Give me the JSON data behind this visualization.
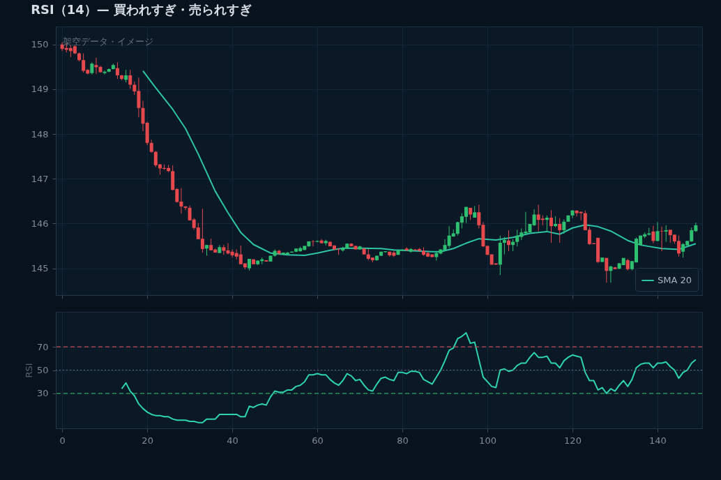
{
  "chart_data": [
    {
      "type": "candlestick",
      "title": "RSI（14）— 買われすぎ・売られすぎ",
      "annotations": [
        "架空データ・イメージ"
      ],
      "x": [
        0,
        1,
        2,
        3,
        4,
        5,
        6,
        7,
        8,
        9,
        10,
        11,
        12,
        13,
        14,
        15,
        16,
        17,
        18,
        19,
        20,
        21,
        22,
        23,
        24,
        25,
        26,
        27,
        28,
        29,
        30,
        31,
        32,
        33,
        34,
        35,
        36,
        37,
        38,
        39,
        40,
        41,
        42,
        43,
        44,
        45,
        46,
        47,
        48,
        49,
        50,
        51,
        52,
        53,
        54,
        55,
        56,
        57,
        58,
        59,
        60,
        61,
        62,
        63,
        64,
        65,
        66,
        67,
        68,
        69,
        70,
        71,
        72,
        73,
        74,
        75,
        76,
        77,
        78,
        79,
        80,
        81,
        82,
        83,
        84,
        85,
        86,
        87,
        88,
        89,
        90,
        91,
        92,
        93,
        94,
        95,
        96,
        97,
        98,
        99,
        100,
        101,
        102,
        103,
        104,
        105,
        106,
        107,
        108,
        109,
        110,
        111,
        112,
        113,
        114,
        115,
        116,
        117,
        118,
        119,
        120,
        121,
        122,
        123,
        124,
        125,
        126,
        127,
        128,
        129,
        130,
        131,
        132,
        133,
        134,
        135,
        136,
        137,
        138,
        139,
        140,
        141,
        142,
        143,
        144,
        145,
        146,
        147,
        148,
        149
      ],
      "ohlc": [
        [
          150.0,
          150.05,
          149.85,
          149.9
        ],
        [
          149.92,
          150.02,
          149.82,
          149.88
        ],
        [
          149.92,
          149.98,
          149.72,
          149.85
        ],
        [
          149.96,
          149.98,
          149.78,
          149.8
        ],
        [
          149.8,
          149.82,
          149.62,
          149.65
        ],
        [
          149.65,
          149.8,
          149.37,
          149.41
        ],
        [
          149.43,
          149.45,
          149.33,
          149.35
        ],
        [
          149.36,
          149.6,
          149.33,
          149.57
        ],
        [
          149.54,
          149.7,
          149.34,
          149.49
        ],
        [
          149.5,
          149.52,
          149.37,
          149.38
        ],
        [
          149.36,
          149.42,
          149.33,
          149.39
        ],
        [
          149.39,
          149.46,
          149.38,
          149.45
        ],
        [
          149.45,
          149.57,
          149.44,
          149.54
        ],
        [
          149.47,
          149.6,
          149.23,
          149.31
        ],
        [
          149.31,
          149.32,
          149.2,
          149.23
        ],
        [
          149.21,
          149.43,
          149.15,
          149.31
        ],
        [
          149.31,
          149.43,
          149.01,
          149.1
        ],
        [
          149.1,
          149.17,
          148.87,
          148.95
        ],
        [
          148.96,
          149.26,
          148.37,
          148.58
        ],
        [
          148.58,
          148.74,
          148.06,
          148.23
        ],
        [
          148.25,
          148.27,
          147.75,
          147.8
        ],
        [
          147.8,
          147.87,
          147.58,
          147.6
        ],
        [
          147.6,
          147.62,
          147.26,
          147.3
        ],
        [
          147.32,
          147.33,
          147.09,
          147.23
        ],
        [
          147.24,
          147.32,
          147.2,
          147.22
        ],
        [
          147.24,
          147.31,
          147.15,
          147.17
        ],
        [
          147.17,
          147.3,
          146.74,
          146.75
        ],
        [
          146.77,
          146.79,
          146.47,
          146.48
        ],
        [
          146.49,
          146.79,
          146.22,
          146.38
        ],
        [
          146.38,
          146.39,
          146.3,
          146.35
        ],
        [
          146.35,
          146.4,
          146.07,
          146.07
        ],
        [
          146.09,
          146.12,
          145.86,
          145.9
        ],
        [
          145.91,
          146.01,
          145.65,
          145.65
        ],
        [
          145.66,
          146.33,
          145.35,
          145.43
        ],
        [
          145.44,
          145.52,
          145.28,
          145.52
        ],
        [
          145.52,
          145.66,
          145.4,
          145.4
        ],
        [
          145.42,
          145.44,
          145.35,
          145.35
        ],
        [
          145.34,
          145.52,
          145.34,
          145.47
        ],
        [
          145.47,
          145.52,
          145.3,
          145.39
        ],
        [
          145.4,
          145.56,
          145.31,
          145.33
        ],
        [
          145.37,
          145.42,
          145.24,
          145.29
        ],
        [
          145.34,
          145.42,
          145.2,
          145.26
        ],
        [
          145.31,
          145.51,
          145.09,
          145.09
        ],
        [
          145.11,
          145.11,
          144.98,
          145.02
        ],
        [
          145.0,
          145.21,
          144.95,
          145.21
        ],
        [
          145.2,
          145.2,
          145.09,
          145.09
        ],
        [
          145.09,
          145.18,
          145.07,
          145.17
        ],
        [
          145.16,
          145.24,
          145.09,
          145.2
        ],
        [
          145.18,
          145.18,
          145.15,
          145.15
        ],
        [
          145.15,
          145.28,
          145.15,
          145.28
        ],
        [
          145.28,
          145.42,
          145.26,
          145.39
        ],
        [
          145.39,
          145.41,
          145.3,
          145.33
        ],
        [
          145.31,
          145.35,
          145.3,
          145.35
        ],
        [
          145.31,
          145.36,
          145.31,
          145.35
        ],
        [
          145.35,
          145.38,
          145.35,
          145.37
        ],
        [
          145.37,
          145.44,
          145.36,
          145.44
        ],
        [
          145.38,
          145.48,
          145.37,
          145.45
        ],
        [
          145.41,
          145.5,
          145.4,
          145.5
        ],
        [
          145.49,
          145.6,
          145.48,
          145.6
        ],
        [
          145.6,
          145.63,
          145.49,
          145.59
        ],
        [
          145.59,
          145.62,
          145.58,
          145.61
        ],
        [
          145.62,
          145.65,
          145.55,
          145.56
        ],
        [
          145.56,
          145.64,
          145.51,
          145.61
        ],
        [
          145.59,
          145.6,
          145.49,
          145.49
        ],
        [
          145.51,
          145.51,
          145.41,
          145.42
        ],
        [
          145.42,
          145.45,
          145.3,
          145.41
        ],
        [
          145.4,
          145.48,
          145.37,
          145.45
        ],
        [
          145.44,
          145.55,
          145.43,
          145.55
        ],
        [
          145.55,
          145.56,
          145.49,
          145.49
        ],
        [
          145.5,
          145.5,
          145.42,
          145.42
        ],
        [
          145.42,
          145.5,
          145.41,
          145.49
        ],
        [
          145.44,
          145.45,
          145.31,
          145.31
        ],
        [
          145.31,
          145.43,
          145.18,
          145.21
        ],
        [
          145.24,
          145.24,
          145.13,
          145.18
        ],
        [
          145.18,
          145.28,
          145.17,
          145.28
        ],
        [
          145.28,
          145.37,
          145.27,
          145.37
        ],
        [
          145.36,
          145.38,
          145.35,
          145.38
        ],
        [
          145.37,
          145.37,
          145.26,
          145.29
        ],
        [
          145.35,
          145.39,
          145.25,
          145.28
        ],
        [
          145.3,
          145.4,
          145.3,
          145.4
        ],
        [
          145.39,
          145.42,
          145.39,
          145.42
        ],
        [
          145.44,
          145.47,
          145.39,
          145.4
        ],
        [
          145.37,
          145.45,
          145.35,
          145.43
        ],
        [
          145.42,
          145.43,
          145.39,
          145.4
        ],
        [
          145.43,
          145.45,
          145.37,
          145.39
        ],
        [
          145.39,
          145.47,
          145.28,
          145.3
        ],
        [
          145.34,
          145.37,
          145.25,
          145.26
        ],
        [
          145.31,
          145.31,
          145.25,
          145.25
        ],
        [
          145.25,
          145.37,
          145.17,
          145.34
        ],
        [
          145.33,
          145.43,
          145.31,
          145.42
        ],
        [
          145.4,
          145.65,
          145.38,
          145.52
        ],
        [
          145.5,
          145.94,
          145.45,
          145.73
        ],
        [
          145.71,
          145.87,
          145.7,
          145.78
        ],
        [
          145.77,
          146.04,
          145.73,
          146.03
        ],
        [
          146.02,
          146.23,
          145.89,
          146.16
        ],
        [
          146.15,
          146.37,
          146.01,
          146.37
        ],
        [
          146.35,
          146.35,
          146.08,
          146.2
        ],
        [
          146.13,
          146.39,
          146.13,
          146.25
        ],
        [
          146.25,
          146.42,
          145.89,
          145.96
        ],
        [
          145.97,
          146.03,
          145.47,
          145.49
        ],
        [
          145.5,
          145.5,
          145.3,
          145.3
        ],
        [
          145.31,
          145.31,
          145.08,
          145.08
        ],
        [
          145.11,
          145.11,
          145.08,
          145.08
        ],
        [
          145.08,
          145.73,
          144.85,
          145.57
        ],
        [
          145.57,
          145.7,
          145.31,
          145.63
        ],
        [
          145.62,
          145.85,
          145.38,
          145.52
        ],
        [
          145.52,
          145.65,
          145.38,
          145.59
        ],
        [
          145.59,
          145.86,
          145.49,
          145.73
        ],
        [
          145.7,
          145.89,
          145.63,
          145.8
        ],
        [
          145.78,
          146.26,
          145.76,
          145.82
        ],
        [
          145.8,
          145.99,
          145.8,
          145.99
        ],
        [
          145.96,
          146.32,
          145.94,
          146.2
        ],
        [
          146.2,
          146.42,
          145.83,
          146.08
        ],
        [
          146.11,
          146.18,
          145.96,
          146.08
        ],
        [
          146.08,
          146.18,
          145.83,
          146.13
        ],
        [
          146.13,
          146.3,
          145.57,
          145.94
        ],
        [
          145.94,
          146.16,
          145.92,
          145.99
        ],
        [
          145.99,
          146.12,
          145.57,
          145.85
        ],
        [
          145.85,
          146.09,
          145.77,
          146.04
        ],
        [
          146.04,
          146.18,
          146.04,
          146.18
        ],
        [
          146.18,
          146.3,
          146.12,
          146.29
        ],
        [
          146.29,
          146.29,
          146.16,
          146.23
        ],
        [
          146.26,
          146.27,
          146.07,
          146.23
        ],
        [
          146.23,
          146.29,
          145.85,
          145.85
        ],
        [
          145.86,
          145.92,
          145.52,
          145.54
        ],
        [
          145.56,
          145.56,
          145.54,
          145.54
        ],
        [
          145.68,
          145.68,
          145.12,
          145.14
        ],
        [
          145.14,
          145.24,
          145.14,
          145.24
        ],
        [
          145.23,
          145.23,
          144.68,
          144.94
        ],
        [
          144.94,
          145.06,
          144.68,
          145.04
        ],
        [
          145.02,
          145.03,
          144.98,
          144.98
        ],
        [
          144.99,
          145.12,
          144.98,
          145.11
        ],
        [
          145.07,
          145.23,
          145.07,
          145.23
        ],
        [
          145.18,
          145.21,
          144.95,
          144.98
        ],
        [
          144.98,
          145.16,
          144.95,
          145.16
        ],
        [
          145.13,
          145.69,
          145.13,
          145.66
        ],
        [
          145.52,
          145.73,
          145.52,
          145.73
        ],
        [
          145.71,
          145.8,
          145.67,
          145.76
        ],
        [
          145.75,
          145.9,
          145.73,
          145.78
        ],
        [
          145.82,
          145.95,
          145.56,
          145.61
        ],
        [
          145.61,
          146.03,
          145.6,
          145.83
        ],
        [
          145.83,
          145.93,
          145.38,
          145.82
        ],
        [
          145.82,
          145.96,
          145.59,
          145.85
        ],
        [
          145.86,
          145.86,
          145.57,
          145.74
        ],
        [
          145.75,
          145.75,
          145.55,
          145.6
        ],
        [
          145.61,
          145.73,
          145.26,
          145.33
        ],
        [
          145.37,
          145.56,
          145.24,
          145.54
        ],
        [
          145.51,
          145.61,
          145.51,
          145.61
        ],
        [
          145.6,
          145.91,
          145.59,
          145.85
        ],
        [
          145.83,
          146.02,
          145.81,
          145.96
        ]
      ],
      "colors": [
        "#e5484d",
        "#e5484d",
        "#e5484d",
        "#e5484d",
        "#e5484d",
        "#e5484d",
        "#e5484d",
        "#2fbf71",
        "#e5484d",
        "#e5484d",
        "#2fbf71",
        "#2fbf71",
        "#2fbf71",
        "#e5484d",
        "#e5484d",
        "#2fbf71",
        "#e5484d",
        "#e5484d",
        "#e5484d",
        "#e5484d",
        "#e5484d",
        "#e5484d",
        "#e5484d",
        "#e5484d",
        "#e5484d",
        "#e5484d",
        "#e5484d",
        "#e5484d",
        "#e5484d",
        "#e5484d",
        "#e5484d",
        "#e5484d",
        "#e5484d",
        "#e5484d",
        "#2fbf71",
        "#e5484d",
        "#e5484d",
        "#2fbf71",
        "#e5484d",
        "#e5484d",
        "#e5484d",
        "#e5484d",
        "#e5484d",
        "#e5484d",
        "#2fbf71",
        "#e5484d",
        "#2fbf71",
        "#2fbf71",
        "#e5484d",
        "#2fbf71",
        "#2fbf71",
        "#e5484d",
        "#2fbf71",
        "#2fbf71",
        "#2fbf71",
        "#2fbf71",
        "#2fbf71",
        "#2fbf71",
        "#2fbf71",
        "#e5484d",
        "#2fbf71",
        "#e5484d",
        "#2fbf71",
        "#e5484d",
        "#e5484d",
        "#e5484d",
        "#2fbf71",
        "#2fbf71",
        "#e5484d",
        "#e5484d",
        "#2fbf71",
        "#e5484d",
        "#e5484d",
        "#e5484d",
        "#2fbf71",
        "#2fbf71",
        "#2fbf71",
        "#e5484d",
        "#e5484d",
        "#2fbf71",
        "#2fbf71",
        "#e5484d",
        "#2fbf71",
        "#e5484d",
        "#e5484d",
        "#e5484d",
        "#e5484d",
        "#e5484d",
        "#2fbf71",
        "#2fbf71",
        "#2fbf71",
        "#2fbf71",
        "#2fbf71",
        "#2fbf71",
        "#2fbf71",
        "#2fbf71",
        "#e5484d",
        "#2fbf71",
        "#e5484d",
        "#e5484d",
        "#e5484d",
        "#e5484d",
        "#e5484d",
        "#2fbf71",
        "#2fbf71",
        "#e5484d",
        "#2fbf71",
        "#2fbf71",
        "#2fbf71",
        "#2fbf71",
        "#2fbf71",
        "#2fbf71",
        "#e5484d",
        "#e5484d",
        "#2fbf71",
        "#e5484d",
        "#2fbf71",
        "#e5484d",
        "#2fbf71",
        "#2fbf71",
        "#2fbf71",
        "#e5484d",
        "#e5484d",
        "#e5484d",
        "#e5484d",
        "#e5484d",
        "#e5484d",
        "#2fbf71",
        "#e5484d",
        "#2fbf71",
        "#e5484d",
        "#2fbf71",
        "#2fbf71",
        "#e5484d",
        "#2fbf71",
        "#2fbf71",
        "#2fbf71",
        "#2fbf71",
        "#2fbf71",
        "#e5484d",
        "#2fbf71",
        "#e5484d",
        "#2fbf71",
        "#e5484d",
        "#e5484d",
        "#e5484d",
        "#2fbf71",
        "#2fbf71",
        "#2fbf71",
        "#2fbf71"
      ],
      "series": [
        {
          "name": "SMA 20",
          "type": "line",
          "color": "#2ec4a6",
          "x": [
            19,
            22,
            26,
            29,
            32,
            36,
            39,
            42,
            45,
            49,
            53,
            57,
            60,
            63,
            66,
            70,
            75,
            78,
            87,
            89,
            92,
            95,
            98,
            102,
            106,
            110,
            114,
            117,
            120,
            123,
            126,
            129,
            133,
            136,
            141,
            145,
            149
          ],
          "values": [
            149.41,
            149.03,
            148.55,
            148.12,
            147.55,
            146.72,
            146.24,
            145.8,
            145.53,
            145.34,
            145.3,
            145.29,
            145.34,
            145.4,
            145.45,
            145.45,
            145.44,
            145.41,
            145.37,
            145.37,
            145.44,
            145.56,
            145.66,
            145.63,
            145.69,
            145.78,
            145.82,
            145.76,
            145.9,
            145.97,
            145.93,
            145.83,
            145.62,
            145.52,
            145.44,
            145.42,
            145.55
          ]
        }
      ],
      "xlim": [
        -1.5,
        150.5
      ],
      "xticks": [
        0,
        20,
        40,
        60,
        80,
        100,
        120,
        140
      ],
      "ylim": [
        144.4,
        150.4
      ],
      "yticks": [
        145,
        146,
        147,
        148,
        149,
        150
      ],
      "grid": true,
      "legend": "bottom right",
      "tick_labels": "y"
    },
    {
      "type": "line",
      "ylabel": "RSI",
      "series": [
        {
          "color": "#2ed3b0",
          "x": [
            14,
            15,
            16,
            17,
            18,
            19,
            20,
            21,
            22,
            23,
            24,
            25,
            26,
            27,
            28,
            29,
            30,
            31,
            32,
            33,
            34,
            35,
            36,
            37,
            38,
            39,
            40,
            41,
            42,
            43,
            44,
            45,
            46,
            47,
            48,
            49,
            50,
            51,
            52,
            53,
            54,
            55,
            56,
            57,
            58,
            59,
            60,
            61,
            62,
            63,
            64,
            65,
            66,
            67,
            68,
            69,
            70,
            71,
            72,
            73,
            74,
            75,
            76,
            77,
            78,
            79,
            80,
            81,
            82,
            83,
            84,
            85,
            86,
            87,
            88,
            89,
            90,
            91,
            92,
            93,
            94,
            95,
            96,
            97,
            98,
            99,
            100,
            101,
            102,
            103,
            104,
            105,
            106,
            107,
            108,
            109,
            110,
            111,
            112,
            113,
            114,
            115,
            116,
            117,
            118,
            119,
            120,
            121,
            122,
            123,
            124,
            125,
            126,
            127,
            128,
            129,
            130,
            131,
            132,
            133,
            134,
            135,
            136,
            137,
            138,
            139,
            140,
            141,
            142,
            143,
            144,
            145,
            146,
            147,
            148,
            149
          ],
          "values": [
            34,
            39,
            32,
            28,
            21,
            17,
            14,
            12,
            11,
            11,
            10,
            10,
            8,
            7,
            7,
            7,
            6,
            6,
            5,
            5,
            8,
            8,
            8,
            12,
            12,
            12,
            12,
            12,
            10,
            10,
            19,
            18,
            20,
            21,
            20,
            27,
            32,
            31,
            31,
            33,
            33,
            36,
            37,
            40,
            46,
            46,
            47,
            46,
            46,
            42,
            39,
            37,
            41,
            47,
            45,
            41,
            42,
            37,
            33,
            32,
            38,
            43,
            44,
            42,
            41,
            48,
            48,
            47,
            49,
            49,
            48,
            42,
            40,
            38,
            44,
            50,
            58,
            67,
            69,
            77,
            79,
            82,
            73,
            74,
            59,
            44,
            40,
            36,
            35,
            50,
            51,
            49,
            50,
            54,
            56,
            56,
            61,
            65,
            61,
            61,
            62,
            56,
            56,
            52,
            58,
            61,
            63,
            62,
            61,
            48,
            41,
            41,
            33,
            35,
            30,
            34,
            32,
            37,
            41,
            36,
            42,
            52,
            55,
            56,
            56,
            52,
            56,
            56,
            57,
            53,
            50,
            43,
            48,
            50,
            56,
            59
          ]
        }
      ],
      "ref_lines": [
        {
          "axis": "y",
          "value": 70,
          "color": "#c0505a",
          "line_style": "dashed"
        },
        {
          "axis": "y",
          "value": 50,
          "color": "#5d6b7a",
          "line_style": "dotted"
        },
        {
          "axis": "y",
          "value": 30,
          "color": "#2f9e5f",
          "line_style": "dashed"
        }
      ],
      "xlim": [
        -1.5,
        150.5
      ],
      "xticks": [
        0,
        20,
        40,
        60,
        80,
        100,
        120,
        140
      ],
      "ylim": [
        0,
        100
      ],
      "yticks": [
        30,
        50,
        70
      ],
      "grid": true
    }
  ]
}
